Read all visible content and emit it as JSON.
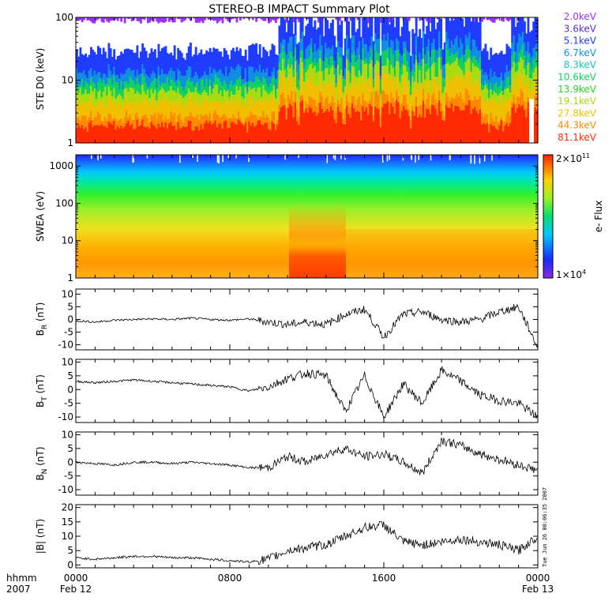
{
  "title": "STEREO-B IMPACT Summary Plot",
  "timestamp": "Tue Jun 26 00:06:35 2007",
  "x_axis": {
    "row1_label": "hhmm",
    "row2_label": "2007",
    "ticks": [
      {
        "hours": 0,
        "time": "0000",
        "date": "Feb 12"
      },
      {
        "hours": 8,
        "time": "0800",
        "date": ""
      },
      {
        "hours": 16,
        "time": "1600",
        "date": ""
      },
      {
        "hours": 24,
        "time": "0000",
        "date": "Feb 13"
      }
    ],
    "range_hours": [
      0,
      24
    ]
  },
  "chart_data": [
    {
      "type": "line",
      "panel": "ste",
      "ylabel": "STE D0 (keV)",
      "yscale": "log",
      "ylim": [
        1,
        100
      ],
      "yticks": [
        "1",
        "10",
        "100"
      ],
      "series": [
        {
          "name": "2.0keV",
          "color": "#9b30ff"
        },
        {
          "name": "3.6keV",
          "color": "#5a2bd8"
        },
        {
          "name": "5.1keV",
          "color": "#1f3cff"
        },
        {
          "name": "6.7keV",
          "color": "#0f8fe0"
        },
        {
          "name": "8.3keV",
          "color": "#11c8c8"
        },
        {
          "name": "10.6keV",
          "color": "#10d060"
        },
        {
          "name": "13.9keV",
          "color": "#27d41d"
        },
        {
          "name": "19.1keV",
          "color": "#a8dc10"
        },
        {
          "name": "27.8keV",
          "color": "#f0c000"
        },
        {
          "name": "44.3keV",
          "color": "#ff8a00"
        },
        {
          "name": "81.1keV",
          "color": "#ff2a00"
        }
      ]
    },
    {
      "type": "heatmap",
      "panel": "swea",
      "ylabel": "SWEA (eV)",
      "yscale": "log",
      "ylim": [
        1,
        2000
      ],
      "yticks": [
        "1",
        "10",
        "100",
        "1000"
      ],
      "colorbar": {
        "label": "e- Flux",
        "max_base": "2×10",
        "max_exp": "11",
        "min_base": "1×10",
        "min_exp": "4"
      }
    },
    {
      "type": "line",
      "panel": "br",
      "ylabel_main": "B",
      "ylabel_sub": "R",
      "ylabel_unit": "(nT)",
      "ylim": [
        -12,
        12
      ],
      "yticks": [
        "-10",
        "-5",
        "0",
        "5",
        "10"
      ],
      "x_hours": [
        0,
        1,
        2,
        3,
        4,
        5,
        6,
        7,
        8,
        9,
        10,
        11,
        12,
        13,
        14,
        15,
        16,
        17,
        18,
        19,
        20,
        21,
        22,
        23,
        24
      ],
      "values": [
        -0.5,
        -1,
        -0.3,
        0,
        0.2,
        0,
        0.5,
        0,
        -0.3,
        0.2,
        -1,
        -2,
        -1,
        -2,
        2,
        4,
        -7,
        2,
        3,
        0,
        -1,
        0,
        3,
        5,
        -11
      ]
    },
    {
      "type": "line",
      "panel": "bt",
      "ylabel_main": "B",
      "ylabel_sub": "T",
      "ylabel_unit": "(nT)",
      "ylim": [
        -12,
        11
      ],
      "yticks": [
        "-10",
        "-5",
        "0",
        "5",
        "10"
      ],
      "x_hours": [
        0,
        1,
        2,
        3,
        4,
        5,
        6,
        7,
        8,
        9,
        10,
        11,
        12,
        13,
        14,
        15,
        16,
        17,
        18,
        19,
        20,
        21,
        22,
        23,
        24
      ],
      "values": [
        3,
        2.5,
        3,
        3.5,
        3,
        2.5,
        2,
        1.5,
        1,
        -0.5,
        1,
        4,
        6,
        5,
        -8,
        5,
        -10,
        2,
        -5,
        7,
        3,
        -2,
        -4,
        -5,
        -10
      ]
    },
    {
      "type": "line",
      "panel": "bn",
      "ylabel_main": "B",
      "ylabel_sub": "N",
      "ylabel_unit": "(nT)",
      "ylim": [
        -12,
        11
      ],
      "yticks": [
        "-10",
        "-5",
        "0",
        "5",
        "10"
      ],
      "x_hours": [
        0,
        1,
        2,
        3,
        4,
        5,
        6,
        7,
        8,
        9,
        10,
        11,
        12,
        13,
        14,
        15,
        16,
        17,
        18,
        19,
        20,
        21,
        22,
        23,
        24
      ],
      "values": [
        0,
        -0.5,
        -1,
        0,
        0,
        -0.5,
        0,
        -0.5,
        -1,
        -2,
        -2,
        2,
        0,
        3,
        5,
        2,
        3,
        0,
        -4,
        8,
        6,
        3,
        1,
        -1,
        -3
      ]
    },
    {
      "type": "line",
      "panel": "bmag",
      "ylabel": "|B| (nT)",
      "ylim": [
        -1,
        21
      ],
      "yticks": [
        "0",
        "5",
        "10",
        "15",
        "20"
      ],
      "x_hours": [
        0,
        1,
        2,
        3,
        4,
        5,
        6,
        7,
        8,
        9,
        10,
        11,
        12,
        13,
        14,
        15,
        16,
        17,
        18,
        19,
        20,
        21,
        22,
        23,
        24
      ],
      "values": [
        2.5,
        2,
        2.5,
        3,
        3,
        2.5,
        2.5,
        2,
        1.5,
        1,
        2,
        5,
        6,
        7,
        10,
        13,
        14,
        8,
        7,
        8,
        9,
        8,
        7,
        5,
        10
      ]
    }
  ]
}
